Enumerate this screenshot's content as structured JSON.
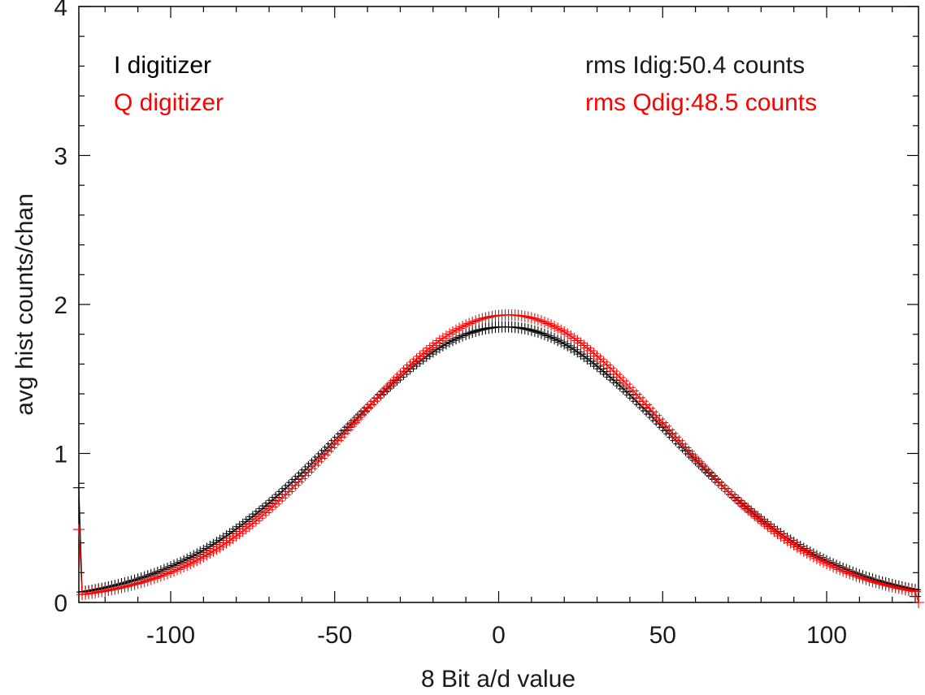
{
  "chart_data": {
    "type": "scatter",
    "title": "",
    "xlabel": "8 Bit a/d value",
    "ylabel": "avg hist counts/chan",
    "xlim": [
      -128,
      128
    ],
    "ylim": [
      0,
      4
    ],
    "x_ticks": [
      -100,
      -50,
      0,
      50,
      100
    ],
    "x_tick_labels": [
      "-100",
      "-50",
      "0",
      "50",
      "100"
    ],
    "y_ticks": [
      0,
      1,
      2,
      3,
      4
    ],
    "y_tick_labels": [
      "0",
      "1",
      "2",
      "3",
      "4"
    ],
    "grid": false,
    "marker": "+",
    "series": [
      {
        "name": "I digitizer",
        "color": "#000000",
        "gaussian": {
          "peak": 1.85,
          "center": 2,
          "sigma": 50.4
        },
        "x_range": [
          -127,
          127
        ],
        "endpoints": [
          {
            "x": -128,
            "y": 0.77
          },
          {
            "x": 127,
            "y": 0.04
          }
        ]
      },
      {
        "name": "Q digitizer",
        "color": "#ff0000",
        "gaussian": {
          "peak": 1.93,
          "center": 3,
          "sigma": 48.5
        },
        "x_range": [
          -127,
          127
        ],
        "endpoints": [
          {
            "x": -128,
            "y": 0.49
          },
          {
            "x": 128,
            "y": 0.0
          }
        ]
      }
    ],
    "annotations": {
      "legend": [
        {
          "label": "I digitizer",
          "color": "#000000"
        },
        {
          "label": "Q digitizer",
          "color": "#ff0000"
        }
      ],
      "stats": [
        {
          "label": "rms Idig:50.4 counts",
          "color": "#000000"
        },
        {
          "label": "rms Qdig:48.5 counts",
          "color": "#ff0000"
        }
      ]
    }
  }
}
